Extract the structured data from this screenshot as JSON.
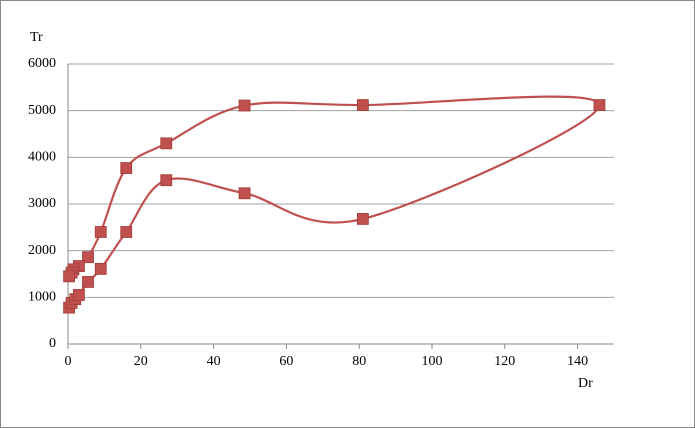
{
  "chart_data": {
    "type": "scatter",
    "xlabel": "Dr",
    "ylabel": "Tr",
    "x": [
      0.3,
      1,
      2,
      3,
      5.5,
      9,
      16,
      27,
      48.5,
      81,
      146,
      81,
      48.5,
      27,
      16,
      9,
      5.5,
      3,
      1.5,
      1,
      0.3
    ],
    "values": [
      780,
      880,
      960,
      1050,
      1330,
      1610,
      2400,
      3510,
      3230,
      2680,
      5120,
      5120,
      5110,
      4300,
      3770,
      2400,
      1860,
      1670,
      1600,
      1530,
      1450
    ],
    "color": "#c0504d",
    "xlim": [
      0,
      150
    ],
    "xticks": [
      0,
      20,
      40,
      60,
      80,
      100,
      120,
      140
    ],
    "ylim": [
      0,
      6000
    ],
    "yticks": [
      0,
      1000,
      2000,
      3000,
      4000,
      5000,
      6000
    ],
    "grid": true
  }
}
